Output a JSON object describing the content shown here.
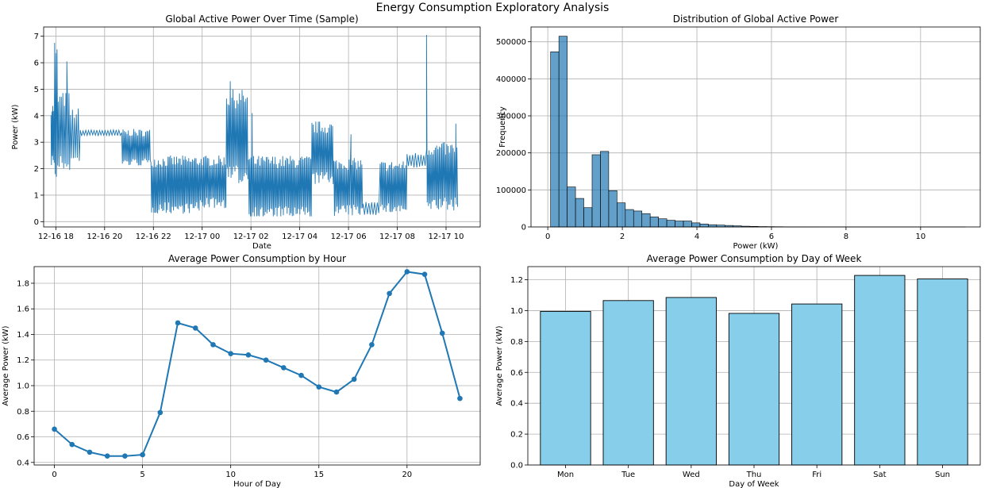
{
  "figure": {
    "suptitle": "Energy Consumption Exploratory Analysis"
  },
  "colors": {
    "line": "#1f77b4",
    "hist": "#1f77b4",
    "bar": "#87ceeb",
    "bar_edge": "#000000",
    "grid": "#b0b0b0"
  },
  "chart_data": [
    {
      "id": "timeseries",
      "type": "line",
      "title": "Global Active Power Over Time (Sample)",
      "xlabel": "Date",
      "ylabel": "Power (kW)",
      "x_ticks": [
        "12-16 18",
        "12-16 20",
        "12-16 22",
        "12-17 00",
        "12-17 02",
        "12-17 04",
        "12-17 06",
        "12-17 08",
        "12-17 10"
      ],
      "x_tick_hours": [
        18,
        20,
        22,
        24,
        26,
        28,
        30,
        32,
        34
      ],
      "xlim": [
        17.5,
        35.4
      ],
      "ylim": [
        -0.2,
        7.35
      ],
      "y_ticks": [
        0,
        1,
        2,
        3,
        4,
        5,
        6,
        7
      ],
      "segments": [
        {
          "t0": 17.8,
          "t1": 17.95,
          "level": 3.3,
          "amp": 1.2,
          "n": 8
        },
        {
          "t0": 17.95,
          "t1": 18.1,
          "level": 4.0,
          "amp": 2.7,
          "n": 6
        },
        {
          "t0": 18.1,
          "t1": 18.6,
          "level": 3.4,
          "amp": 1.5,
          "n": 16
        },
        {
          "t0": 18.6,
          "t1": 19.0,
          "level": 3.2,
          "amp": 1.1,
          "n": 10
        },
        {
          "t0": 19.0,
          "t1": 20.7,
          "level": 3.35,
          "amp": 0.12,
          "n": 30
        },
        {
          "t0": 20.7,
          "t1": 21.9,
          "level": 2.8,
          "amp": 0.7,
          "n": 44
        },
        {
          "t0": 21.9,
          "t1": 23.9,
          "level": 1.4,
          "amp": 1.1,
          "n": 80
        },
        {
          "t0": 23.9,
          "t1": 25.0,
          "level": 1.5,
          "amp": 1.0,
          "n": 42
        },
        {
          "t0": 25.0,
          "t1": 25.9,
          "level": 3.2,
          "amp": 1.8,
          "n": 34
        },
        {
          "t0": 25.9,
          "t1": 28.5,
          "level": 1.3,
          "amp": 1.2,
          "n": 100
        },
        {
          "t0": 28.5,
          "t1": 29.4,
          "level": 2.6,
          "amp": 1.2,
          "n": 34
        },
        {
          "t0": 29.4,
          "t1": 30.6,
          "level": 1.3,
          "amp": 1.1,
          "n": 46
        },
        {
          "t0": 30.6,
          "t1": 31.3,
          "level": 0.5,
          "amp": 0.25,
          "n": 12
        },
        {
          "t0": 31.3,
          "t1": 32.4,
          "level": 1.3,
          "amp": 1.0,
          "n": 42
        },
        {
          "t0": 32.4,
          "t1": 33.2,
          "level": 2.3,
          "amp": 0.3,
          "n": 14
        },
        {
          "t0": 33.2,
          "t1": 34.5,
          "level": 1.7,
          "amp": 1.3,
          "n": 50
        }
      ],
      "spikes": [
        [
          17.95,
          6.75
        ],
        [
          18.45,
          6.05
        ],
        [
          25.15,
          5.3
        ],
        [
          26.05,
          4.1
        ],
        [
          30.1,
          3.3
        ],
        [
          33.2,
          7.05
        ],
        [
          34.4,
          3.7
        ]
      ]
    },
    {
      "id": "histogram",
      "type": "bar",
      "title": "Distribution of Global Active Power",
      "xlabel": "Power (kW)",
      "ylabel": "Frequency",
      "xlim": [
        -0.45,
        11.6
      ],
      "ylim": [
        0,
        540000
      ],
      "x_ticks": [
        0,
        2,
        4,
        6,
        8,
        10
      ],
      "y_ticks": [
        0,
        100000,
        200000,
        300000,
        400000,
        500000
      ],
      "bin_start": 0.076,
      "bin_width": 0.2226,
      "values": [
        473000,
        515000,
        108000,
        77000,
        52000,
        195000,
        204000,
        98000,
        65000,
        47000,
        43000,
        36000,
        27000,
        22000,
        18000,
        16000,
        16000,
        11000,
        8000,
        6000,
        5000,
        4000,
        3000,
        2000,
        1500,
        1000,
        800,
        600,
        400,
        300,
        200,
        150,
        100,
        80,
        60,
        40,
        30,
        20,
        15,
        10,
        8,
        6,
        5,
        4,
        3,
        2,
        2,
        1,
        1,
        1
      ]
    },
    {
      "id": "hourly",
      "type": "line",
      "title": "Average Power Consumption by Hour",
      "xlabel": "Hour of Day",
      "ylabel": "Average Power (kW)",
      "xlim": [
        -1.15,
        24.15
      ],
      "ylim": [
        0.38,
        1.93
      ],
      "x_ticks": [
        0,
        5,
        10,
        15,
        20
      ],
      "y_ticks": [
        0.4,
        0.6,
        0.8,
        1.0,
        1.2,
        1.4,
        1.6,
        1.8
      ],
      "x": [
        0,
        1,
        2,
        3,
        4,
        5,
        6,
        7,
        8,
        9,
        10,
        11,
        12,
        13,
        14,
        15,
        16,
        17,
        18,
        19,
        20,
        21,
        22,
        23
      ],
      "values": [
        0.66,
        0.54,
        0.48,
        0.45,
        0.45,
        0.46,
        0.79,
        1.49,
        1.45,
        1.32,
        1.25,
        1.24,
        1.2,
        1.14,
        1.08,
        0.99,
        0.95,
        1.05,
        1.32,
        1.72,
        1.89,
        1.87,
        1.41,
        0.9
      ]
    },
    {
      "id": "weekday",
      "type": "bar",
      "title": "Average Power Consumption by Day of Week",
      "xlabel": "Day of Week",
      "ylabel": "Average Power (kW)",
      "ylim": [
        0,
        1.285
      ],
      "y_ticks": [
        0.0,
        0.2,
        0.4,
        0.6,
        0.8,
        1.0,
        1.2
      ],
      "categories": [
        "Mon",
        "Tue",
        "Wed",
        "Thu",
        "Fri",
        "Sat",
        "Sun"
      ],
      "values": [
        0.995,
        1.065,
        1.085,
        0.982,
        1.043,
        1.228,
        1.205
      ]
    }
  ]
}
